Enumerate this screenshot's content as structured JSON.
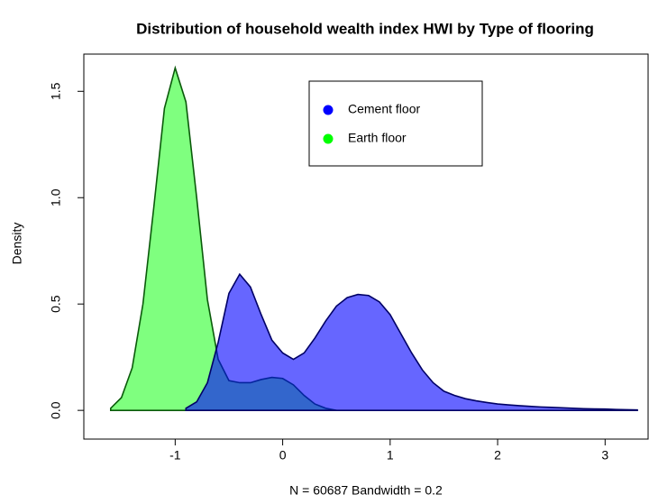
{
  "chart_data": {
    "type": "area",
    "title": "Distribution of household wealth index HWI by Type of flooring",
    "x_label": "N = 60687   Bandwidth = 0.2",
    "y_label": "Density",
    "x": [
      -1.6,
      -1.5,
      -1.4,
      -1.3,
      -1.2,
      -1.1,
      -1.0,
      -0.9,
      -0.8,
      -0.7,
      -0.6,
      -0.5,
      -0.4,
      -0.3,
      -0.2,
      -0.1,
      0.0,
      0.1,
      0.2,
      0.3,
      0.4,
      0.5,
      0.6,
      0.7,
      0.8,
      0.9,
      1.0,
      1.1,
      1.2,
      1.3,
      1.4,
      1.5,
      1.6,
      1.7,
      1.8,
      1.9,
      2.0,
      2.1,
      2.2,
      2.3,
      2.4,
      2.5,
      2.6,
      2.7,
      2.8,
      2.9,
      3.0,
      3.1,
      3.2,
      3.3
    ],
    "series": [
      {
        "name": "Earth floor",
        "color": "#00ff00",
        "values": [
          0.01,
          0.06,
          0.2,
          0.5,
          0.95,
          1.42,
          1.61,
          1.45,
          1.0,
          0.52,
          0.24,
          0.14,
          0.13,
          0.13,
          0.145,
          0.155,
          0.15,
          0.12,
          0.07,
          0.03,
          0.01,
          0.0,
          null,
          null,
          null,
          null,
          null,
          null,
          null,
          null,
          null,
          null,
          null,
          null,
          null,
          null,
          null,
          null,
          null,
          null,
          null,
          null,
          null,
          null,
          null,
          null,
          null,
          null,
          null,
          null
        ]
      },
      {
        "name": "Cement floor",
        "color": "#0000ff",
        "values": [
          null,
          null,
          null,
          null,
          null,
          null,
          null,
          0.01,
          0.04,
          0.13,
          0.32,
          0.55,
          0.64,
          0.58,
          0.45,
          0.33,
          0.27,
          0.24,
          0.27,
          0.34,
          0.42,
          0.49,
          0.53,
          0.545,
          0.54,
          0.51,
          0.45,
          0.36,
          0.27,
          0.19,
          0.13,
          0.09,
          0.07,
          0.055,
          0.045,
          0.037,
          0.03,
          0.026,
          0.022,
          0.019,
          0.016,
          0.014,
          0.012,
          0.01,
          0.008,
          0.007,
          0.006,
          0.004,
          0.003,
          0.002
        ]
      }
    ],
    "legend_order": [
      1,
      0
    ],
    "xlim": [
      -1.85,
      3.4
    ],
    "xticks": [
      -1,
      0,
      1,
      2,
      3
    ],
    "ylim": [
      -0.135,
      1.675
    ],
    "yticks": [
      {
        "value": 0,
        "label": "0.0"
      },
      0.5,
      {
        "value": 1,
        "label": "1.0"
      },
      1.5
    ]
  }
}
